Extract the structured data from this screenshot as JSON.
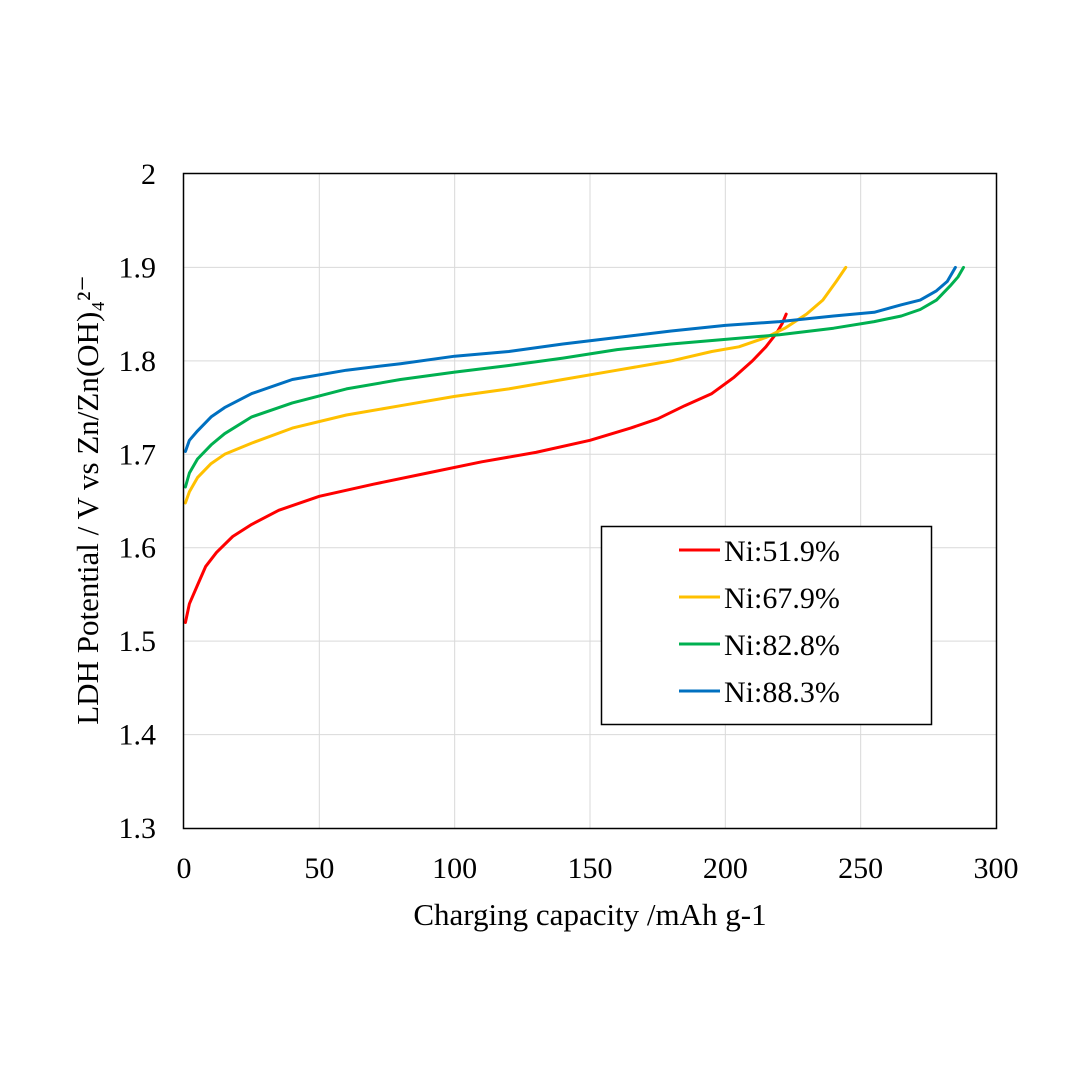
{
  "chart_data": {
    "type": "line",
    "xlabel": "Charging capacity /mAh g-1",
    "ylabel": "LDH Potential / V vs Zn/Zn(OH)₄²⁻",
    "xlim": [
      0,
      300
    ],
    "ylim": [
      1.3,
      2.0
    ],
    "x_ticks": [
      "0",
      "50",
      "100",
      "150",
      "200",
      "250",
      "300"
    ],
    "y_ticks": [
      "1.3",
      "1.4",
      "1.5",
      "1.6",
      "1.7",
      "1.8",
      "1.9",
      "2"
    ],
    "grid": true,
    "legend_position": "lower-right",
    "series": [
      {
        "name": "Ni:51.9%",
        "color": "#ff0000",
        "points": [
          [
            0.5,
            1.52
          ],
          [
            2,
            1.54
          ],
          [
            5,
            1.56
          ],
          [
            8,
            1.58
          ],
          [
            12,
            1.595
          ],
          [
            18,
            1.612
          ],
          [
            25,
            1.625
          ],
          [
            35,
            1.64
          ],
          [
            50,
            1.655
          ],
          [
            70,
            1.668
          ],
          [
            90,
            1.68
          ],
          [
            110,
            1.692
          ],
          [
            130,
            1.702
          ],
          [
            150,
            1.715
          ],
          [
            165,
            1.728
          ],
          [
            175,
            1.738
          ],
          [
            185,
            1.752
          ],
          [
            195,
            1.765
          ],
          [
            203,
            1.782
          ],
          [
            210,
            1.8
          ],
          [
            215,
            1.815
          ],
          [
            219,
            1.83
          ],
          [
            221,
            1.84
          ],
          [
            222.5,
            1.85
          ]
        ]
      },
      {
        "name": "Ni:67.9%",
        "color": "#ffc000",
        "points": [
          [
            0.5,
            1.648
          ],
          [
            2,
            1.66
          ],
          [
            5,
            1.675
          ],
          [
            10,
            1.69
          ],
          [
            15,
            1.7
          ],
          [
            25,
            1.712
          ],
          [
            40,
            1.728
          ],
          [
            60,
            1.742
          ],
          [
            80,
            1.752
          ],
          [
            100,
            1.762
          ],
          [
            120,
            1.77
          ],
          [
            140,
            1.78
          ],
          [
            160,
            1.79
          ],
          [
            180,
            1.8
          ],
          [
            195,
            1.81
          ],
          [
            205,
            1.815
          ],
          [
            215,
            1.825
          ],
          [
            222,
            1.835
          ],
          [
            230,
            1.85
          ],
          [
            236,
            1.865
          ],
          [
            241,
            1.885
          ],
          [
            244.5,
            1.9
          ]
        ]
      },
      {
        "name": "Ni:82.8%",
        "color": "#00b050",
        "points": [
          [
            0.5,
            1.665
          ],
          [
            2,
            1.68
          ],
          [
            5,
            1.695
          ],
          [
            10,
            1.71
          ],
          [
            15,
            1.722
          ],
          [
            25,
            1.74
          ],
          [
            40,
            1.755
          ],
          [
            60,
            1.77
          ],
          [
            80,
            1.78
          ],
          [
            100,
            1.788
          ],
          [
            120,
            1.795
          ],
          [
            140,
            1.803
          ],
          [
            160,
            1.812
          ],
          [
            180,
            1.818
          ],
          [
            200,
            1.823
          ],
          [
            220,
            1.828
          ],
          [
            240,
            1.835
          ],
          [
            255,
            1.842
          ],
          [
            265,
            1.848
          ],
          [
            272,
            1.855
          ],
          [
            278,
            1.865
          ],
          [
            283,
            1.88
          ],
          [
            286,
            1.89
          ],
          [
            288,
            1.9
          ]
        ]
      },
      {
        "name": "Ni:88.3%",
        "color": "#0070c0",
        "points": [
          [
            0.5,
            1.703
          ],
          [
            2,
            1.715
          ],
          [
            5,
            1.725
          ],
          [
            10,
            1.74
          ],
          [
            15,
            1.75
          ],
          [
            25,
            1.765
          ],
          [
            40,
            1.78
          ],
          [
            60,
            1.79
          ],
          [
            80,
            1.797
          ],
          [
            100,
            1.805
          ],
          [
            120,
            1.81
          ],
          [
            140,
            1.818
          ],
          [
            160,
            1.825
          ],
          [
            180,
            1.832
          ],
          [
            200,
            1.838
          ],
          [
            220,
            1.842
          ],
          [
            240,
            1.848
          ],
          [
            255,
            1.852
          ],
          [
            265,
            1.86
          ],
          [
            272,
            1.865
          ],
          [
            278,
            1.875
          ],
          [
            282,
            1.885
          ],
          [
            285,
            1.9
          ]
        ]
      }
    ]
  }
}
